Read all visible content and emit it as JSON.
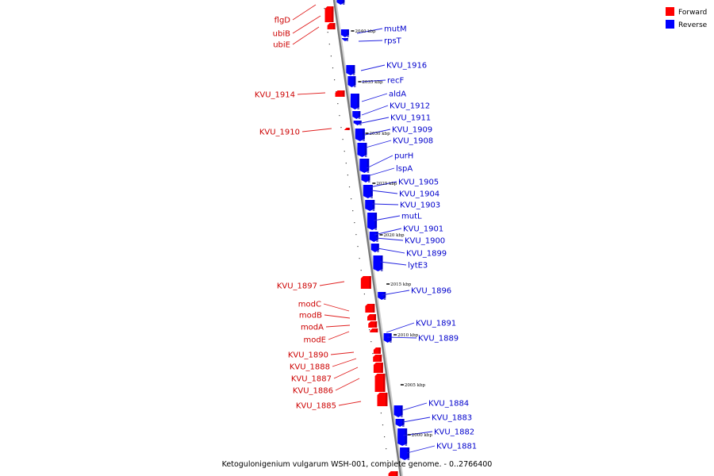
{
  "legend": {
    "forward": {
      "label": "Forward",
      "color": "#ff0000"
    },
    "reverse": {
      "label": "Reverse",
      "color": "#0000ff"
    }
  },
  "caption": "Ketogulonigenium vulgarum WSH-001, complete genome. - 0..2766400",
  "ticks": [
    "2040 kbp",
    "2035 kbp",
    "2030 kbp",
    "2025 kbp",
    "2020 kbp",
    "2015 kbp",
    "2010 kbp",
    "2005 kbp",
    "2000 kbp"
  ],
  "forward_genes": [
    "flgD",
    "ubiB",
    "ubiE",
    "KVU_1914",
    "KVU_1910",
    "KVU_1897",
    "modC",
    "modB",
    "modA",
    "modE",
    "KVU_1890",
    "KVU_1888",
    "KVU_1887",
    "KVU_1886",
    "KVU_1885"
  ],
  "reverse_genes": [
    "mutM",
    "rpsT",
    "KVU_1916",
    "recF",
    "aldA",
    "KVU_1912",
    "KVU_1911",
    "KVU_1909",
    "KVU_1908",
    "purH",
    "lspA",
    "KVU_1905",
    "KVU_1904",
    "KVU_1903",
    "mutL",
    "KVU_1901",
    "KVU_1900",
    "KVU_1899",
    "lytE3",
    "KVU_1896",
    "KVU_1891",
    "KVU_1889",
    "KVU_1884",
    "KVU_1883",
    "KVU_1882",
    "KVU_1881"
  ]
}
